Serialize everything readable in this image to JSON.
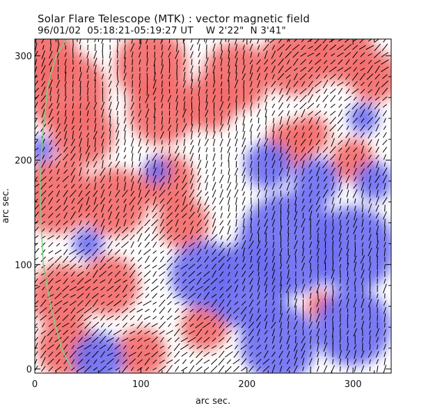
{
  "chart_data": {
    "type": "heatmap",
    "title": "Solar Flare Telescope (MTK) : vector magnetic field",
    "subtitle": "96/01/02  05:18:21-05:19:27 UT    W 2'22\"  N 3'41\"",
    "xlabel": "arc sec.",
    "ylabel": "arc sec.",
    "xlim": [
      0,
      336
    ],
    "ylim": [
      -4,
      316
    ],
    "x_ticks": [
      0,
      100,
      200,
      300
    ],
    "y_ticks": [
      0,
      100,
      200,
      300
    ],
    "grid": false,
    "colors": {
      "positive_polarity": "#f36b6b",
      "negative_polarity": "#6f6ff2",
      "neutral": "#ffffff",
      "transverse_field_vectors": "#000000",
      "limb_line": "#7fd07f"
    },
    "polarity_regions": [
      {
        "polarity": "positive",
        "x": 30,
        "y": 265,
        "r": 38
      },
      {
        "polarity": "positive",
        "x": 10,
        "y": 300,
        "r": 30
      },
      {
        "polarity": "positive",
        "x": 45,
        "y": 225,
        "r": 30
      },
      {
        "polarity": "positive",
        "x": 110,
        "y": 290,
        "r": 34
      },
      {
        "polarity": "positive",
        "x": 120,
        "y": 248,
        "r": 32
      },
      {
        "polarity": "positive",
        "x": 165,
        "y": 255,
        "r": 26
      },
      {
        "polarity": "positive",
        "x": 190,
        "y": 280,
        "r": 32
      },
      {
        "polarity": "positive",
        "x": 245,
        "y": 295,
        "r": 32
      },
      {
        "polarity": "positive",
        "x": 290,
        "y": 305,
        "r": 30
      },
      {
        "polarity": "positive",
        "x": 320,
        "y": 280,
        "r": 24
      },
      {
        "polarity": "positive",
        "x": 20,
        "y": 165,
        "r": 35
      },
      {
        "polarity": "positive",
        "x": 75,
        "y": 160,
        "r": 32
      },
      {
        "polarity": "positive",
        "x": 125,
        "y": 180,
        "r": 26
      },
      {
        "polarity": "positive",
        "x": 140,
        "y": 140,
        "r": 24
      },
      {
        "polarity": "positive",
        "x": 25,
        "y": 70,
        "r": 30
      },
      {
        "polarity": "positive",
        "x": 70,
        "y": 80,
        "r": 28
      },
      {
        "polarity": "positive",
        "x": 30,
        "y": 20,
        "r": 28
      },
      {
        "polarity": "positive",
        "x": 100,
        "y": 15,
        "r": 24
      },
      {
        "polarity": "positive",
        "x": 160,
        "y": 40,
        "r": 22
      },
      {
        "polarity": "positive",
        "x": 240,
        "y": 215,
        "r": 22
      },
      {
        "polarity": "positive",
        "x": 260,
        "y": 225,
        "r": 18
      },
      {
        "polarity": "positive",
        "x": 300,
        "y": 200,
        "r": 20
      },
      {
        "polarity": "positive",
        "x": 270,
        "y": 60,
        "r": 14
      },
      {
        "polarity": "negative",
        "x": 240,
        "y": 120,
        "r": 48
      },
      {
        "polarity": "negative",
        "x": 300,
        "y": 115,
        "r": 40
      },
      {
        "polarity": "negative",
        "x": 200,
        "y": 80,
        "r": 40
      },
      {
        "polarity": "negative",
        "x": 160,
        "y": 90,
        "r": 32
      },
      {
        "polarity": "negative",
        "x": 230,
        "y": 25,
        "r": 36
      },
      {
        "polarity": "negative",
        "x": 300,
        "y": 40,
        "r": 36
      },
      {
        "polarity": "negative",
        "x": 60,
        "y": 10,
        "r": 24
      },
      {
        "polarity": "negative",
        "x": 220,
        "y": 195,
        "r": 22
      },
      {
        "polarity": "negative",
        "x": 265,
        "y": 180,
        "r": 22
      },
      {
        "polarity": "negative",
        "x": 320,
        "y": 180,
        "r": 18
      },
      {
        "polarity": "negative",
        "x": 115,
        "y": 190,
        "r": 12
      },
      {
        "polarity": "negative",
        "x": 50,
        "y": 120,
        "r": 14
      },
      {
        "polarity": "negative",
        "x": 5,
        "y": 210,
        "r": 12
      },
      {
        "polarity": "negative",
        "x": 310,
        "y": 240,
        "r": 14
      }
    ],
    "limb_line": [
      [
        35,
        0
      ],
      [
        25,
        20
      ],
      [
        15,
        60
      ],
      [
        8,
        100
      ],
      [
        6,
        140
      ],
      [
        5,
        180
      ],
      [
        8,
        230
      ],
      [
        12,
        270
      ],
      [
        20,
        300
      ],
      [
        30,
        316
      ]
    ]
  }
}
